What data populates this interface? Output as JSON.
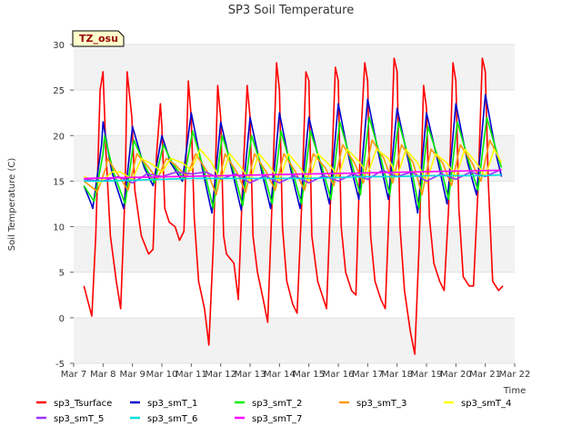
{
  "chart_data": {
    "type": "line",
    "title": "SP3 Soil Temperature",
    "xlabel": "Time",
    "ylabel": "Soil Temperature (C)",
    "badge": "TZ_osu",
    "ylim": [
      -5,
      30
    ],
    "xlim": [
      0,
      15
    ],
    "yticks": [
      -5,
      0,
      5,
      10,
      15,
      20,
      25,
      30
    ],
    "xticks": [
      "Mar 7",
      "Mar 8",
      "Mar 9",
      "Mar 10",
      "Mar 11",
      "Mar 12",
      "Mar 13",
      "Mar 14",
      "Mar 15",
      "Mar 16",
      "Mar 17",
      "Mar 18",
      "Mar 19",
      "Mar 20",
      "Mar 21",
      "Mar 22"
    ],
    "x_unit_note": "x values are days after Mar 7",
    "grid": "horizontal bands",
    "legend_position": "bottom",
    "series": [
      {
        "name": "sp3_Tsurface",
        "color": "#ff0000",
        "x": [
          0.35,
          0.55,
          0.62,
          0.75,
          0.9,
          1.0,
          1.1,
          1.25,
          1.45,
          1.6,
          1.75,
          1.82,
          1.98,
          2.08,
          2.3,
          2.55,
          2.7,
          2.82,
          2.95,
          3.0,
          3.1,
          3.25,
          3.45,
          3.6,
          3.75,
          3.9,
          4.0,
          4.1,
          4.25,
          4.45,
          4.6,
          4.75,
          4.9,
          5.0,
          5.1,
          5.2,
          5.45,
          5.6,
          5.75,
          5.9,
          6.0,
          6.1,
          6.25,
          6.45,
          6.6,
          6.75,
          6.9,
          7.0,
          7.1,
          7.25,
          7.45,
          7.6,
          7.75,
          7.9,
          8.0,
          8.1,
          8.3,
          8.5,
          8.6,
          8.75,
          8.9,
          9.0,
          9.1,
          9.25,
          9.45,
          9.6,
          9.75,
          9.9,
          10.0,
          10.1,
          10.25,
          10.45,
          10.6,
          10.75,
          10.9,
          11.0,
          11.1,
          11.25,
          11.45,
          11.6,
          11.75,
          11.9,
          12.0,
          12.1,
          12.25,
          12.45,
          12.6,
          12.75,
          12.9,
          13.0,
          13.1,
          13.25,
          13.45,
          13.6,
          13.75,
          13.9,
          14.0,
          14.1,
          14.25,
          14.45,
          14.6
        ],
        "y": [
          3.5,
          1.0,
          0.2,
          9.0,
          25.0,
          27.0,
          18.0,
          9.0,
          4.0,
          1.0,
          14.0,
          27.0,
          22.0,
          14.0,
          9.0,
          7.0,
          7.5,
          18.0,
          23.5,
          21.0,
          12.0,
          10.5,
          10.0,
          8.5,
          9.5,
          26.0,
          22.0,
          11.0,
          4.0,
          1.0,
          -3.0,
          8.0,
          25.5,
          22.0,
          9.0,
          7.0,
          6.0,
          2.0,
          15.0,
          25.5,
          22.0,
          9.0,
          5.0,
          2.0,
          -0.5,
          13.0,
          28.0,
          25.0,
          10.0,
          4.0,
          1.5,
          0.5,
          12.0,
          27.0,
          26.0,
          9.0,
          4.0,
          2.0,
          1.0,
          14.0,
          27.5,
          26.0,
          10.0,
          5.0,
          3.0,
          2.5,
          19.0,
          28.0,
          26.0,
          9.0,
          4.0,
          2.0,
          1.0,
          14.0,
          28.5,
          27.0,
          10.0,
          3.0,
          -1.5,
          -4.0,
          8.0,
          25.5,
          23.0,
          11.0,
          6.0,
          4.0,
          3.0,
          12.0,
          28.0,
          26.0,
          12.0,
          4.5,
          3.5,
          3.5,
          14.0,
          28.5,
          27.0,
          15.0,
          4.0,
          3.0,
          3.5
        ]
      },
      {
        "name": "sp3_smT_1",
        "color": "#0000cc",
        "x": [
          0.35,
          0.6,
          0.65,
          0.95,
          1.0,
          1.3,
          1.7,
          2.0,
          2.4,
          2.7,
          3.0,
          3.3,
          3.7,
          4.0,
          4.4,
          4.7,
          5.0,
          5.4,
          5.7,
          6.0,
          6.4,
          6.7,
          7.0,
          7.4,
          7.7,
          8.0,
          8.4,
          8.7,
          9.0,
          9.4,
          9.7,
          10.0,
          10.4,
          10.7,
          11.0,
          11.4,
          11.7,
          12.0,
          12.4,
          12.7,
          13.0,
          13.4,
          13.7,
          14.0,
          14.4,
          14.55
        ],
        "y": [
          14.5,
          12.5,
          12.0,
          19.0,
          21.5,
          16.0,
          12.0,
          21.0,
          16.5,
          14.5,
          20.0,
          17.0,
          15.0,
          22.5,
          16.0,
          11.5,
          21.5,
          16.0,
          11.8,
          22.0,
          16.0,
          12.0,
          22.5,
          16.0,
          12.0,
          22.0,
          16.5,
          12.5,
          23.5,
          17.0,
          13.0,
          24.0,
          17.5,
          13.0,
          23.0,
          17.0,
          11.5,
          22.5,
          17.0,
          12.5,
          23.5,
          17.0,
          13.5,
          24.5,
          17.5,
          15.5
        ]
      },
      {
        "name": "sp3_smT_2",
        "color": "#00ee00",
        "x": [
          0.35,
          0.65,
          0.7,
          1.0,
          1.05,
          1.35,
          1.75,
          2.05,
          2.45,
          2.75,
          3.05,
          3.35,
          3.75,
          4.05,
          4.45,
          4.75,
          5.05,
          5.45,
          5.75,
          6.05,
          6.45,
          6.75,
          7.05,
          7.45,
          7.75,
          8.05,
          8.45,
          8.75,
          9.05,
          9.45,
          9.75,
          10.05,
          10.45,
          10.75,
          11.05,
          11.45,
          11.75,
          12.05,
          12.45,
          12.75,
          13.05,
          13.45,
          13.75,
          14.05,
          14.45,
          14.55
        ],
        "y": [
          14.5,
          13.0,
          12.8,
          18.0,
          20.0,
          16.0,
          12.5,
          19.5,
          16.5,
          14.8,
          19.0,
          17.0,
          15.2,
          20.5,
          16.0,
          12.0,
          20.0,
          16.0,
          12.3,
          20.0,
          16.0,
          12.5,
          20.5,
          16.0,
          12.5,
          20.5,
          16.5,
          13.0,
          21.5,
          17.0,
          13.5,
          22.0,
          17.5,
          13.5,
          21.5,
          17.0,
          12.0,
          21.0,
          17.0,
          13.0,
          21.5,
          17.0,
          14.0,
          22.0,
          17.5,
          16.5
        ]
      },
      {
        "name": "sp3_smT_3",
        "color": "#ff9900",
        "x": [
          0.35,
          0.75,
          0.8,
          1.1,
          1.15,
          1.45,
          1.85,
          2.15,
          2.55,
          2.85,
          3.15,
          3.45,
          3.85,
          4.15,
          4.55,
          4.85,
          5.15,
          5.55,
          5.85,
          6.15,
          6.55,
          6.85,
          7.15,
          7.55,
          7.85,
          8.15,
          8.55,
          8.85,
          9.15,
          9.55,
          9.85,
          10.15,
          10.55,
          10.85,
          11.15,
          11.55,
          11.85,
          12.15,
          12.55,
          12.85,
          13.15,
          13.55,
          13.85,
          14.15,
          14.55
        ],
        "y": [
          15.0,
          14.0,
          13.8,
          16.5,
          17.5,
          16.0,
          14.0,
          18.0,
          16.5,
          15.2,
          17.5,
          16.8,
          15.5,
          18.0,
          16.0,
          13.5,
          18.0,
          16.0,
          13.8,
          18.0,
          16.0,
          14.0,
          18.0,
          16.0,
          14.0,
          18.0,
          16.5,
          14.5,
          19.0,
          17.0,
          14.8,
          19.5,
          17.5,
          14.8,
          19.0,
          17.0,
          13.5,
          18.5,
          17.0,
          14.5,
          19.0,
          17.0,
          15.0,
          19.5,
          17.0
        ]
      },
      {
        "name": "sp3_smT_4",
        "color": "#ffff00",
        "x": [
          0.35,
          0.9,
          1.3,
          1.6,
          2.0,
          2.3,
          2.7,
          3.0,
          3.3,
          3.7,
          4.0,
          4.3,
          4.7,
          5.0,
          5.3,
          5.7,
          6.0,
          6.3,
          6.7,
          7.0,
          7.3,
          7.7,
          8.0,
          8.3,
          8.7,
          9.0,
          9.3,
          9.7,
          10.0,
          10.3,
          10.7,
          11.0,
          11.3,
          11.7,
          12.0,
          12.3,
          12.7,
          13.0,
          13.3,
          13.7,
          14.0,
          14.3,
          14.55
        ],
        "y": [
          15.5,
          14.8,
          16.0,
          16.0,
          15.2,
          17.5,
          16.8,
          16.0,
          17.5,
          17.0,
          16.2,
          18.5,
          17.0,
          15.0,
          18.0,
          16.5,
          15.0,
          18.0,
          16.5,
          15.0,
          18.0,
          16.5,
          15.0,
          18.0,
          16.8,
          15.5,
          18.5,
          17.2,
          15.8,
          18.5,
          17.5,
          15.5,
          18.5,
          17.0,
          14.8,
          18.0,
          17.0,
          15.5,
          18.5,
          17.0,
          15.5,
          18.5,
          17.0
        ]
      },
      {
        "name": "sp3_smT_5",
        "color": "#9933ff",
        "x": [
          0.35,
          1.0,
          1.5,
          2.0,
          2.5,
          3.0,
          3.5,
          4.0,
          4.5,
          5.0,
          5.5,
          6.0,
          6.5,
          7.0,
          7.5,
          8.0,
          8.5,
          9.0,
          9.5,
          10.0,
          10.5,
          11.0,
          11.5,
          12.0,
          12.5,
          13.0,
          13.5,
          14.0,
          14.55
        ],
        "y": [
          15.2,
          15.0,
          15.5,
          14.8,
          15.8,
          15.5,
          16.0,
          15.8,
          16.0,
          15.2,
          15.8,
          14.8,
          15.6,
          14.8,
          15.6,
          14.8,
          15.6,
          15.0,
          15.8,
          15.2,
          16.2,
          15.5,
          16.0,
          15.0,
          15.8,
          15.2,
          16.0,
          15.5,
          16.3
        ]
      },
      {
        "name": "sp3_smT_6",
        "color": "#00dddd",
        "x": [
          0.35,
          1.0,
          2.0,
          3.0,
          4.0,
          5.0,
          6.0,
          7.0,
          8.0,
          9.0,
          10.0,
          11.0,
          12.0,
          13.0,
          14.0,
          14.55
        ],
        "y": [
          15.0,
          15.0,
          15.1,
          15.2,
          15.3,
          15.3,
          15.3,
          15.3,
          15.3,
          15.4,
          15.5,
          15.5,
          15.6,
          15.6,
          15.6,
          15.7
        ]
      },
      {
        "name": "sp3_smT_7",
        "color": "#ff00ff",
        "x": [
          0.35,
          14.55
        ],
        "y": [
          15.3,
          16.2
        ]
      }
    ]
  }
}
